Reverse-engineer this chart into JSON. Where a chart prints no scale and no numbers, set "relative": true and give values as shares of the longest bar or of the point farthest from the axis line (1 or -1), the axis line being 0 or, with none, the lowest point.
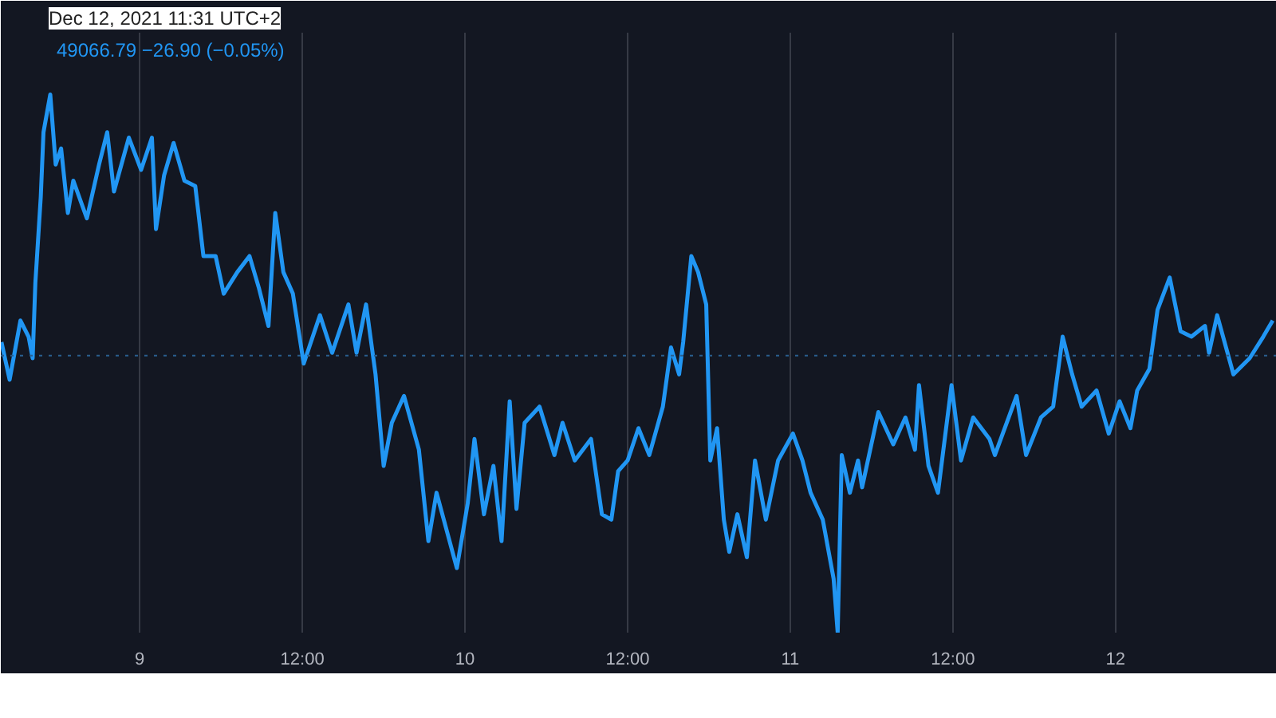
{
  "chart_data": {
    "type": "line",
    "relative": true,
    "annotations": [
      "Dec 12, 2021 11:31 UTC+2",
      "49066.79  −26.90 (−0.05%)"
    ],
    "xlim": [
      "2021-12-08T13:45",
      "2021-12-12T11:54"
    ],
    "xticks": [
      {
        "value": "2021-12-09",
        "label": "9"
      },
      {
        "value": "2021-12-09T12:00",
        "label": "12:00"
      },
      {
        "value": "2021-12-10",
        "label": "10"
      },
      {
        "value": "2021-12-10T12:00",
        "label": "12:00"
      },
      {
        "value": "2021-12-11",
        "label": "11"
      },
      {
        "value": "2021-12-11T12:00",
        "label": "12:00"
      },
      {
        "value": "2021-12-12",
        "label": "12"
      }
    ],
    "grid": "x",
    "marker": "none",
    "line_style": "solid",
    "ref_lines": [
      {
        "axis": "y",
        "value": 0.515,
        "color": "#2a5f8f",
        "line_style": "dotted"
      }
    ],
    "series": [
      {
        "color": "#2196f3",
        "x": [
          "2021-12-08T13:48",
          "2021-12-08T14:24",
          "2021-12-08T15:12",
          "2021-12-08T15:48",
          "2021-12-08T16:06",
          "2021-12-08T16:18",
          "2021-12-08T16:42",
          "2021-12-08T16:54",
          "2021-12-08T17:24",
          "2021-12-08T17:48",
          "2021-12-08T18:12",
          "2021-12-08T18:42",
          "2021-12-08T19:06",
          "2021-12-08T20:06",
          "2021-12-08T21:00",
          "2021-12-08T21:36",
          "2021-12-08T22:06",
          "2021-12-08T23:12",
          "2021-12-09T00:06",
          "2021-12-09T00:54",
          "2021-12-09T01:12",
          "2021-12-09T01:48",
          "2021-12-09T02:30",
          "2021-12-09T03:18",
          "2021-12-09T04:06",
          "2021-12-09T04:42",
          "2021-12-09T05:36",
          "2021-12-09T06:12",
          "2021-12-09T07:12",
          "2021-12-09T08:06",
          "2021-12-09T08:48",
          "2021-12-09T09:30",
          "2021-12-09T10:00",
          "2021-12-09T10:36",
          "2021-12-09T11:18",
          "2021-12-09T12:06",
          "2021-12-09T13:18",
          "2021-12-09T14:12",
          "2021-12-09T15:24",
          "2021-12-09T16:00",
          "2021-12-09T16:42",
          "2021-12-09T17:24",
          "2021-12-09T18:00",
          "2021-12-09T18:36",
          "2021-12-09T19:30",
          "2021-12-09T20:36",
          "2021-12-09T21:18",
          "2021-12-09T21:54",
          "2021-12-09T23:24",
          "2021-12-10T00:12",
          "2021-12-10T00:42",
          "2021-12-10T01:24",
          "2021-12-10T02:06",
          "2021-12-10T02:42",
          "2021-12-10T03:18",
          "2021-12-10T03:48",
          "2021-12-10T04:24",
          "2021-12-10T05:30",
          "2021-12-10T06:36",
          "2021-12-10T07:12",
          "2021-12-10T08:06",
          "2021-12-10T09:18",
          "2021-12-10T10:06",
          "2021-12-10T10:48",
          "2021-12-10T11:18",
          "2021-12-10T12:00",
          "2021-12-10T12:48",
          "2021-12-10T13:36",
          "2021-12-10T14:36",
          "2021-12-10T15:12",
          "2021-12-10T15:48",
          "2021-12-10T16:06",
          "2021-12-10T16:42",
          "2021-12-10T17:12",
          "2021-12-10T17:48",
          "2021-12-10T18:06",
          "2021-12-10T18:36",
          "2021-12-10T19:06",
          "2021-12-10T19:30",
          "2021-12-10T20:06",
          "2021-12-10T20:48",
          "2021-12-10T21:24",
          "2021-12-10T22:12",
          "2021-12-10T23:06",
          "2021-12-11T00:12",
          "2021-12-11T00:54",
          "2021-12-11T01:30",
          "2021-12-11T02:24",
          "2021-12-11T03:12",
          "2021-12-11T03:30",
          "2021-12-11T03:48",
          "2021-12-11T04:24",
          "2021-12-11T05:00",
          "2021-12-11T05:18",
          "2021-12-11T06:30",
          "2021-12-11T07:36",
          "2021-12-11T08:30",
          "2021-12-11T09:12",
          "2021-12-11T09:30",
          "2021-12-11T10:12",
          "2021-12-11T10:54",
          "2021-12-11T11:54",
          "2021-12-11T12:36",
          "2021-12-11T13:30",
          "2021-12-11T14:42",
          "2021-12-11T15:06",
          "2021-12-11T16:42",
          "2021-12-11T17:24",
          "2021-12-11T18:30",
          "2021-12-11T19:24",
          "2021-12-11T20:06",
          "2021-12-11T20:48",
          "2021-12-11T21:30",
          "2021-12-11T22:36",
          "2021-12-11T23:30",
          "2021-12-12T00:18",
          "2021-12-12T01:06",
          "2021-12-12T01:36",
          "2021-12-12T02:30",
          "2021-12-12T03:06",
          "2021-12-12T04:00",
          "2021-12-12T04:48",
          "2021-12-12T05:36",
          "2021-12-12T06:36",
          "2021-12-12T06:54",
          "2021-12-12T07:30",
          "2021-12-12T08:42",
          "2021-12-12T09:54",
          "2021-12-12T10:54",
          "2021-12-12T11:36"
        ],
        "values": [
          0.54,
          0.47,
          0.58,
          0.55,
          0.51,
          0.65,
          0.81,
          0.93,
          1.0,
          0.87,
          0.9,
          0.78,
          0.84,
          0.77,
          0.87,
          0.93,
          0.82,
          0.92,
          0.86,
          0.92,
          0.75,
          0.85,
          0.91,
          0.84,
          0.83,
          0.7,
          0.7,
          0.63,
          0.67,
          0.7,
          0.64,
          0.57,
          0.78,
          0.67,
          0.63,
          0.5,
          0.59,
          0.52,
          0.61,
          0.52,
          0.61,
          0.48,
          0.31,
          0.39,
          0.44,
          0.34,
          0.17,
          0.26,
          0.12,
          0.24,
          0.36,
          0.22,
          0.31,
          0.17,
          0.43,
          0.23,
          0.39,
          0.42,
          0.33,
          0.39,
          0.32,
          0.36,
          0.22,
          0.21,
          0.3,
          0.32,
          0.38,
          0.33,
          0.42,
          0.53,
          0.48,
          0.54,
          0.7,
          0.67,
          0.61,
          0.32,
          0.38,
          0.21,
          0.15,
          0.22,
          0.14,
          0.32,
          0.21,
          0.32,
          0.37,
          0.32,
          0.26,
          0.21,
          0.1,
          0.0,
          0.33,
          0.26,
          0.32,
          0.27,
          0.41,
          0.35,
          0.4,
          0.34,
          0.46,
          0.31,
          0.26,
          0.46,
          0.32,
          0.4,
          0.36,
          0.33,
          0.44,
          0.33,
          0.4,
          0.42,
          0.55,
          0.48,
          0.42,
          0.45,
          0.37,
          0.43,
          0.38,
          0.45,
          0.49,
          0.6,
          0.66,
          0.56,
          0.55,
          0.57,
          0.52,
          0.59,
          0.48,
          0.51,
          0.55,
          0.58
        ]
      }
    ]
  }
}
